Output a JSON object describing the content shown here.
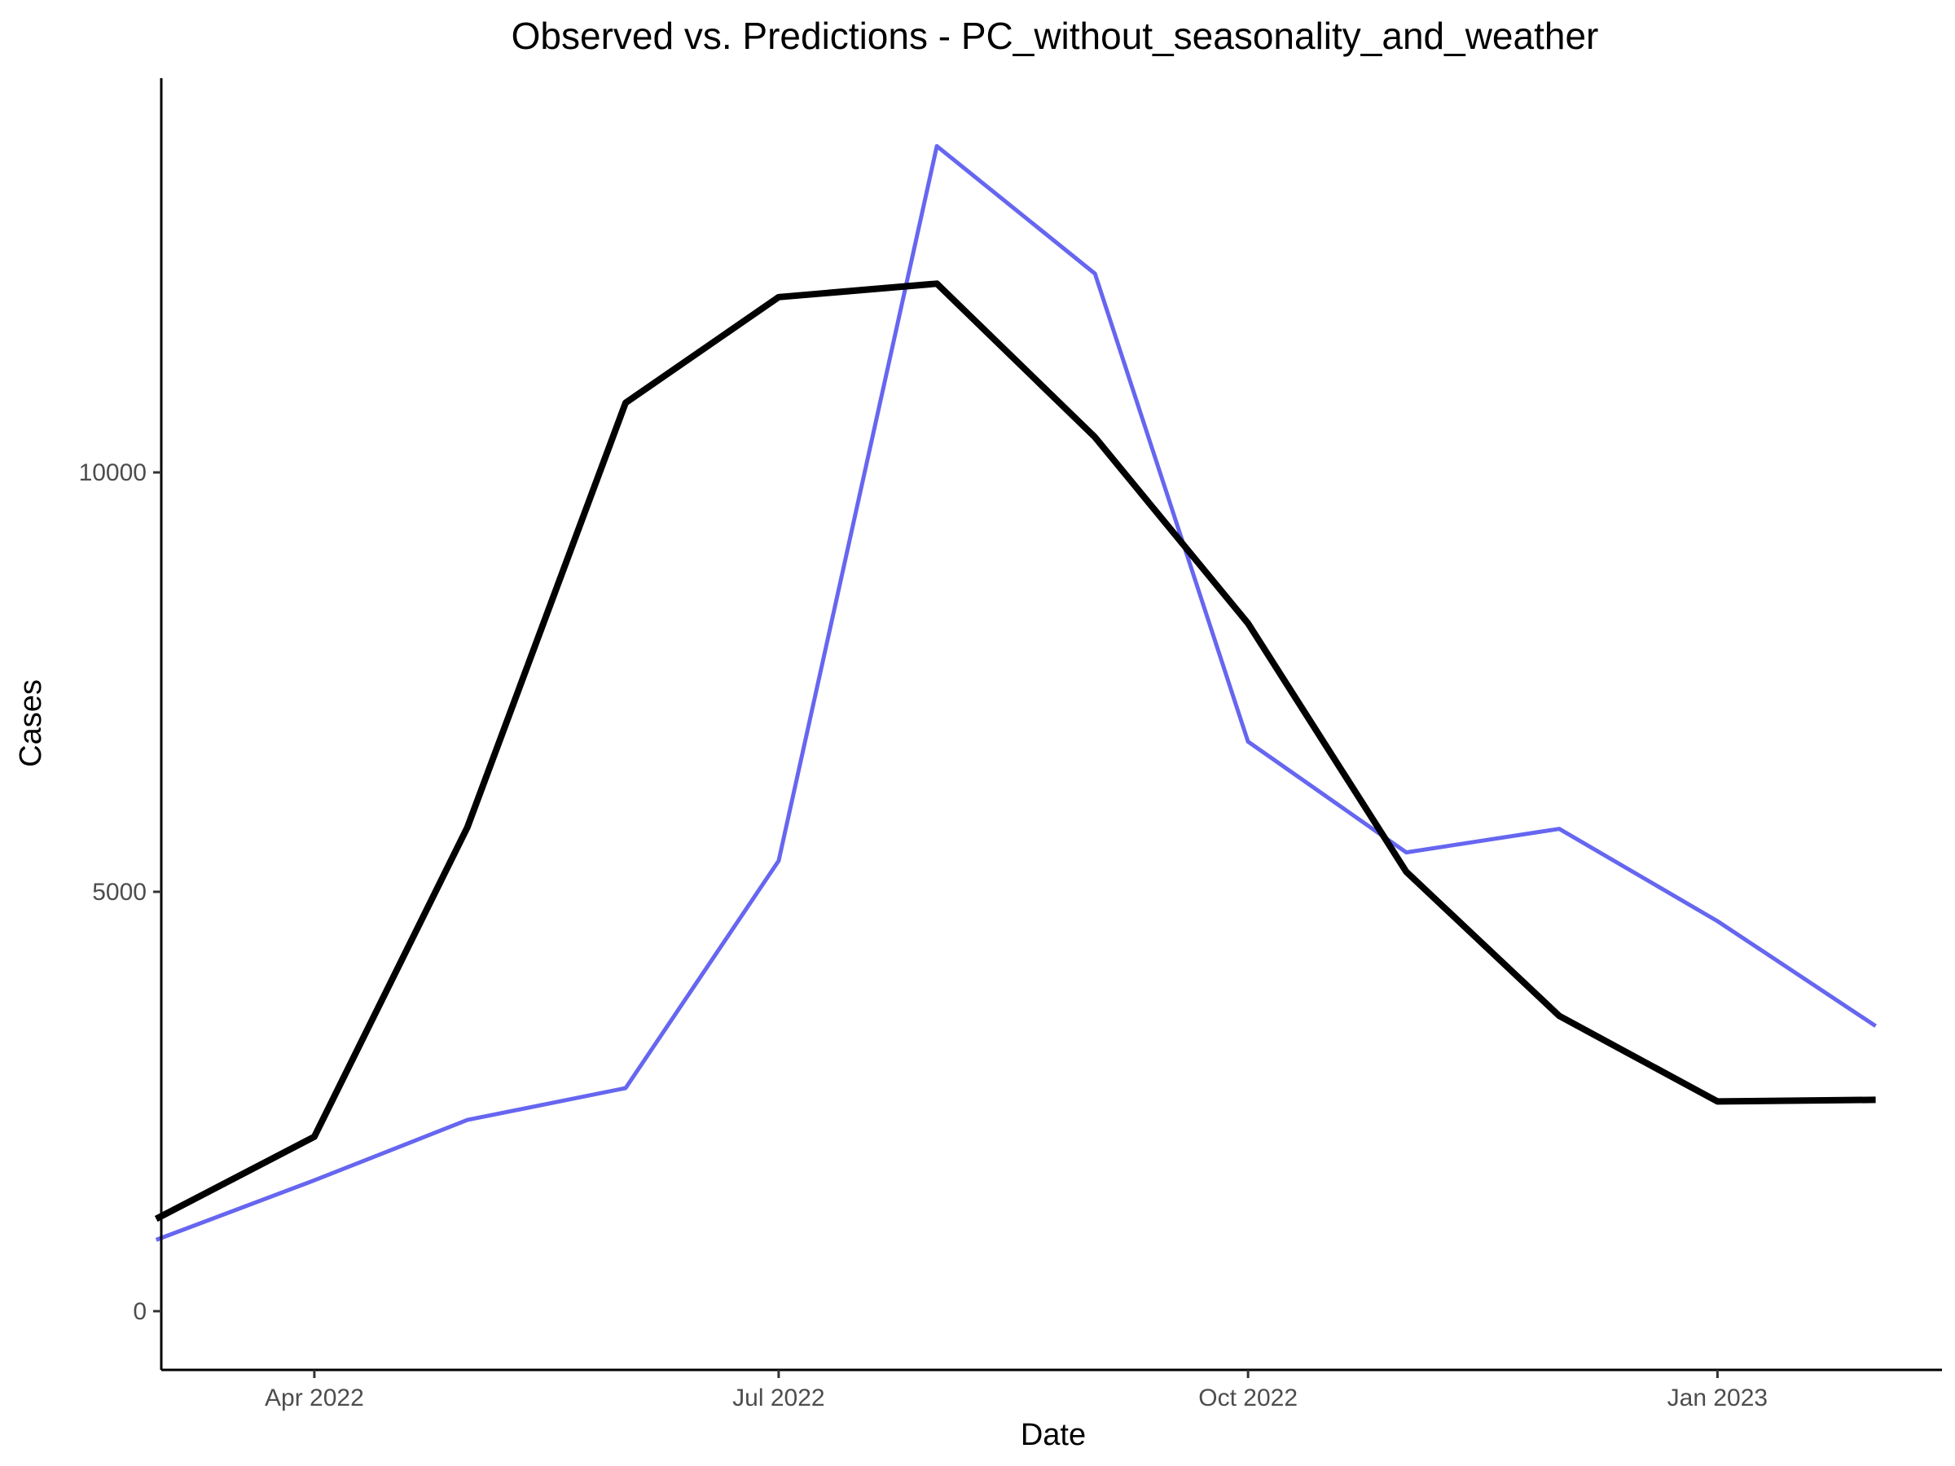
{
  "chart_data": {
    "type": "line",
    "title": "Observed vs. Predictions - PC_without_seasonality_and_weather",
    "xlabel": "Date",
    "ylabel": "Cases",
    "grid": false,
    "legend": "none",
    "xlim": [
      "2022-03-02",
      "2023-02-14"
    ],
    "ylim": [
      -700,
      14700
    ],
    "x_ticks": [
      {
        "date": "2022-04-01",
        "label": "Apr 2022"
      },
      {
        "date": "2022-07-01",
        "label": "Jul 2022"
      },
      {
        "date": "2022-10-01",
        "label": "Oct 2022"
      },
      {
        "date": "2023-01-01",
        "label": "Jan 2023"
      }
    ],
    "y_ticks": [
      {
        "value": 0,
        "label": "0"
      },
      {
        "value": 5000,
        "label": "5000"
      },
      {
        "value": 10000,
        "label": "10000"
      }
    ],
    "x": [
      "2022-03-01",
      "2022-04-01",
      "2022-05-01",
      "2022-06-01",
      "2022-07-01",
      "2022-08-01",
      "2022-09-01",
      "2022-10-01",
      "2022-11-01",
      "2022-12-01",
      "2023-01-01",
      "2023-02-01"
    ],
    "series": [
      {
        "color": "#000000",
        "values": [
          1100,
          2080,
          5770,
          10830,
          12090,
          12250,
          10420,
          8200,
          5240,
          3520,
          2500,
          2520
        ]
      },
      {
        "color": "#6666f0",
        "values": [
          850,
          1560,
          2280,
          2660,
          5370,
          13890,
          12370,
          6790,
          5470,
          5750,
          4650,
          3400
        ]
      }
    ]
  }
}
